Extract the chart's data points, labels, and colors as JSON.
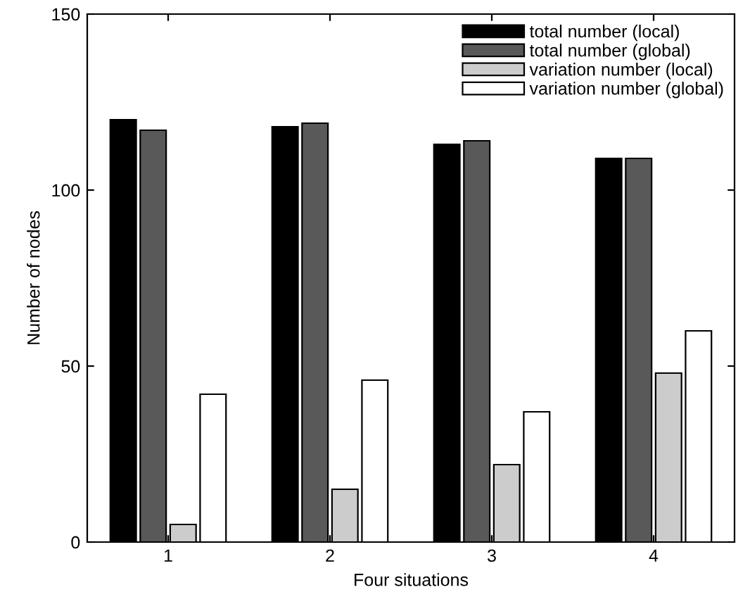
{
  "chart_data": {
    "type": "bar",
    "xlabel": "Four situations",
    "ylabel": "Number of nodes",
    "categories": [
      "1",
      "2",
      "3",
      "4"
    ],
    "series": [
      {
        "name": "total number (local)",
        "color": "#000000",
        "values": [
          120,
          118,
          113,
          109
        ]
      },
      {
        "name": "total number (global)",
        "color": "#595959",
        "values": [
          117,
          119,
          114,
          109
        ]
      },
      {
        "name": "variation number (local)",
        "color": "#cccccc",
        "values": [
          5,
          15,
          22,
          48
        ]
      },
      {
        "name": "variation number (global)",
        "color": "#ffffff",
        "values": [
          42,
          46,
          37,
          60
        ]
      }
    ],
    "ylim": [
      0,
      150
    ],
    "yticks": [
      0,
      50,
      100,
      150
    ],
    "grid": false,
    "legend": "top right"
  }
}
